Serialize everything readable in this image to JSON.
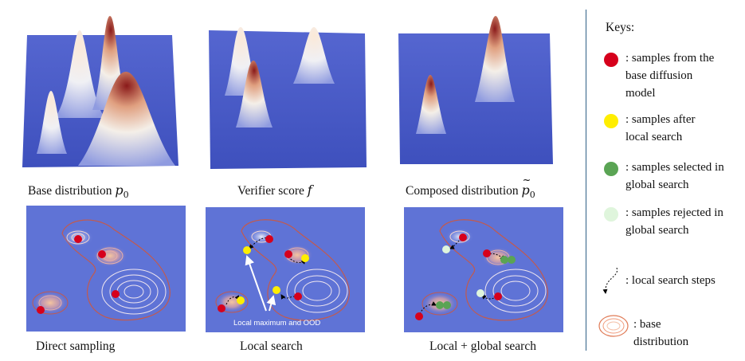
{
  "top_captions": {
    "base": {
      "text": "Base distribution ",
      "symbol": "p",
      "sub": "0"
    },
    "verifier": {
      "text": "Verifier score ",
      "symbol": "f"
    },
    "composed": {
      "text": "Composed distribution ",
      "symbol": "p",
      "sub": "0"
    }
  },
  "bottom_captions": {
    "direct": "Direct sampling",
    "local": "Local search",
    "local_global": "Local + global search"
  },
  "annotation": "Local maximum and OOD",
  "keys": {
    "title": "Keys:",
    "items": [
      {
        "label": ": samples from the\nbase diffusion\nmodel",
        "color": "#d6001c",
        "icon": "red-dot"
      },
      {
        "label": ": samples after\nlocal search",
        "color": "#ffee00",
        "icon": "yellow-dot"
      },
      {
        "label": ": samples selected in\nglobal search",
        "color": "#5aa454",
        "icon": "green-dot"
      },
      {
        "label": ": samples rejected in\nglobal search",
        "color": "#dff5dc",
        "icon": "pale-green-dot"
      },
      {
        "label": ": local search steps",
        "icon": "dotted-arrow-icon"
      },
      {
        "label": ": base\ndistribution",
        "icon": "contour-rings-icon"
      }
    ]
  },
  "colors": {
    "surface_blue": "#4a5cc8",
    "contour_blue": "#5f73d6",
    "red": "#d6001c",
    "yellow": "#ffee00",
    "green": "#5aa454",
    "pale_green": "#dff5dc",
    "divider": "#2f5f86"
  }
}
